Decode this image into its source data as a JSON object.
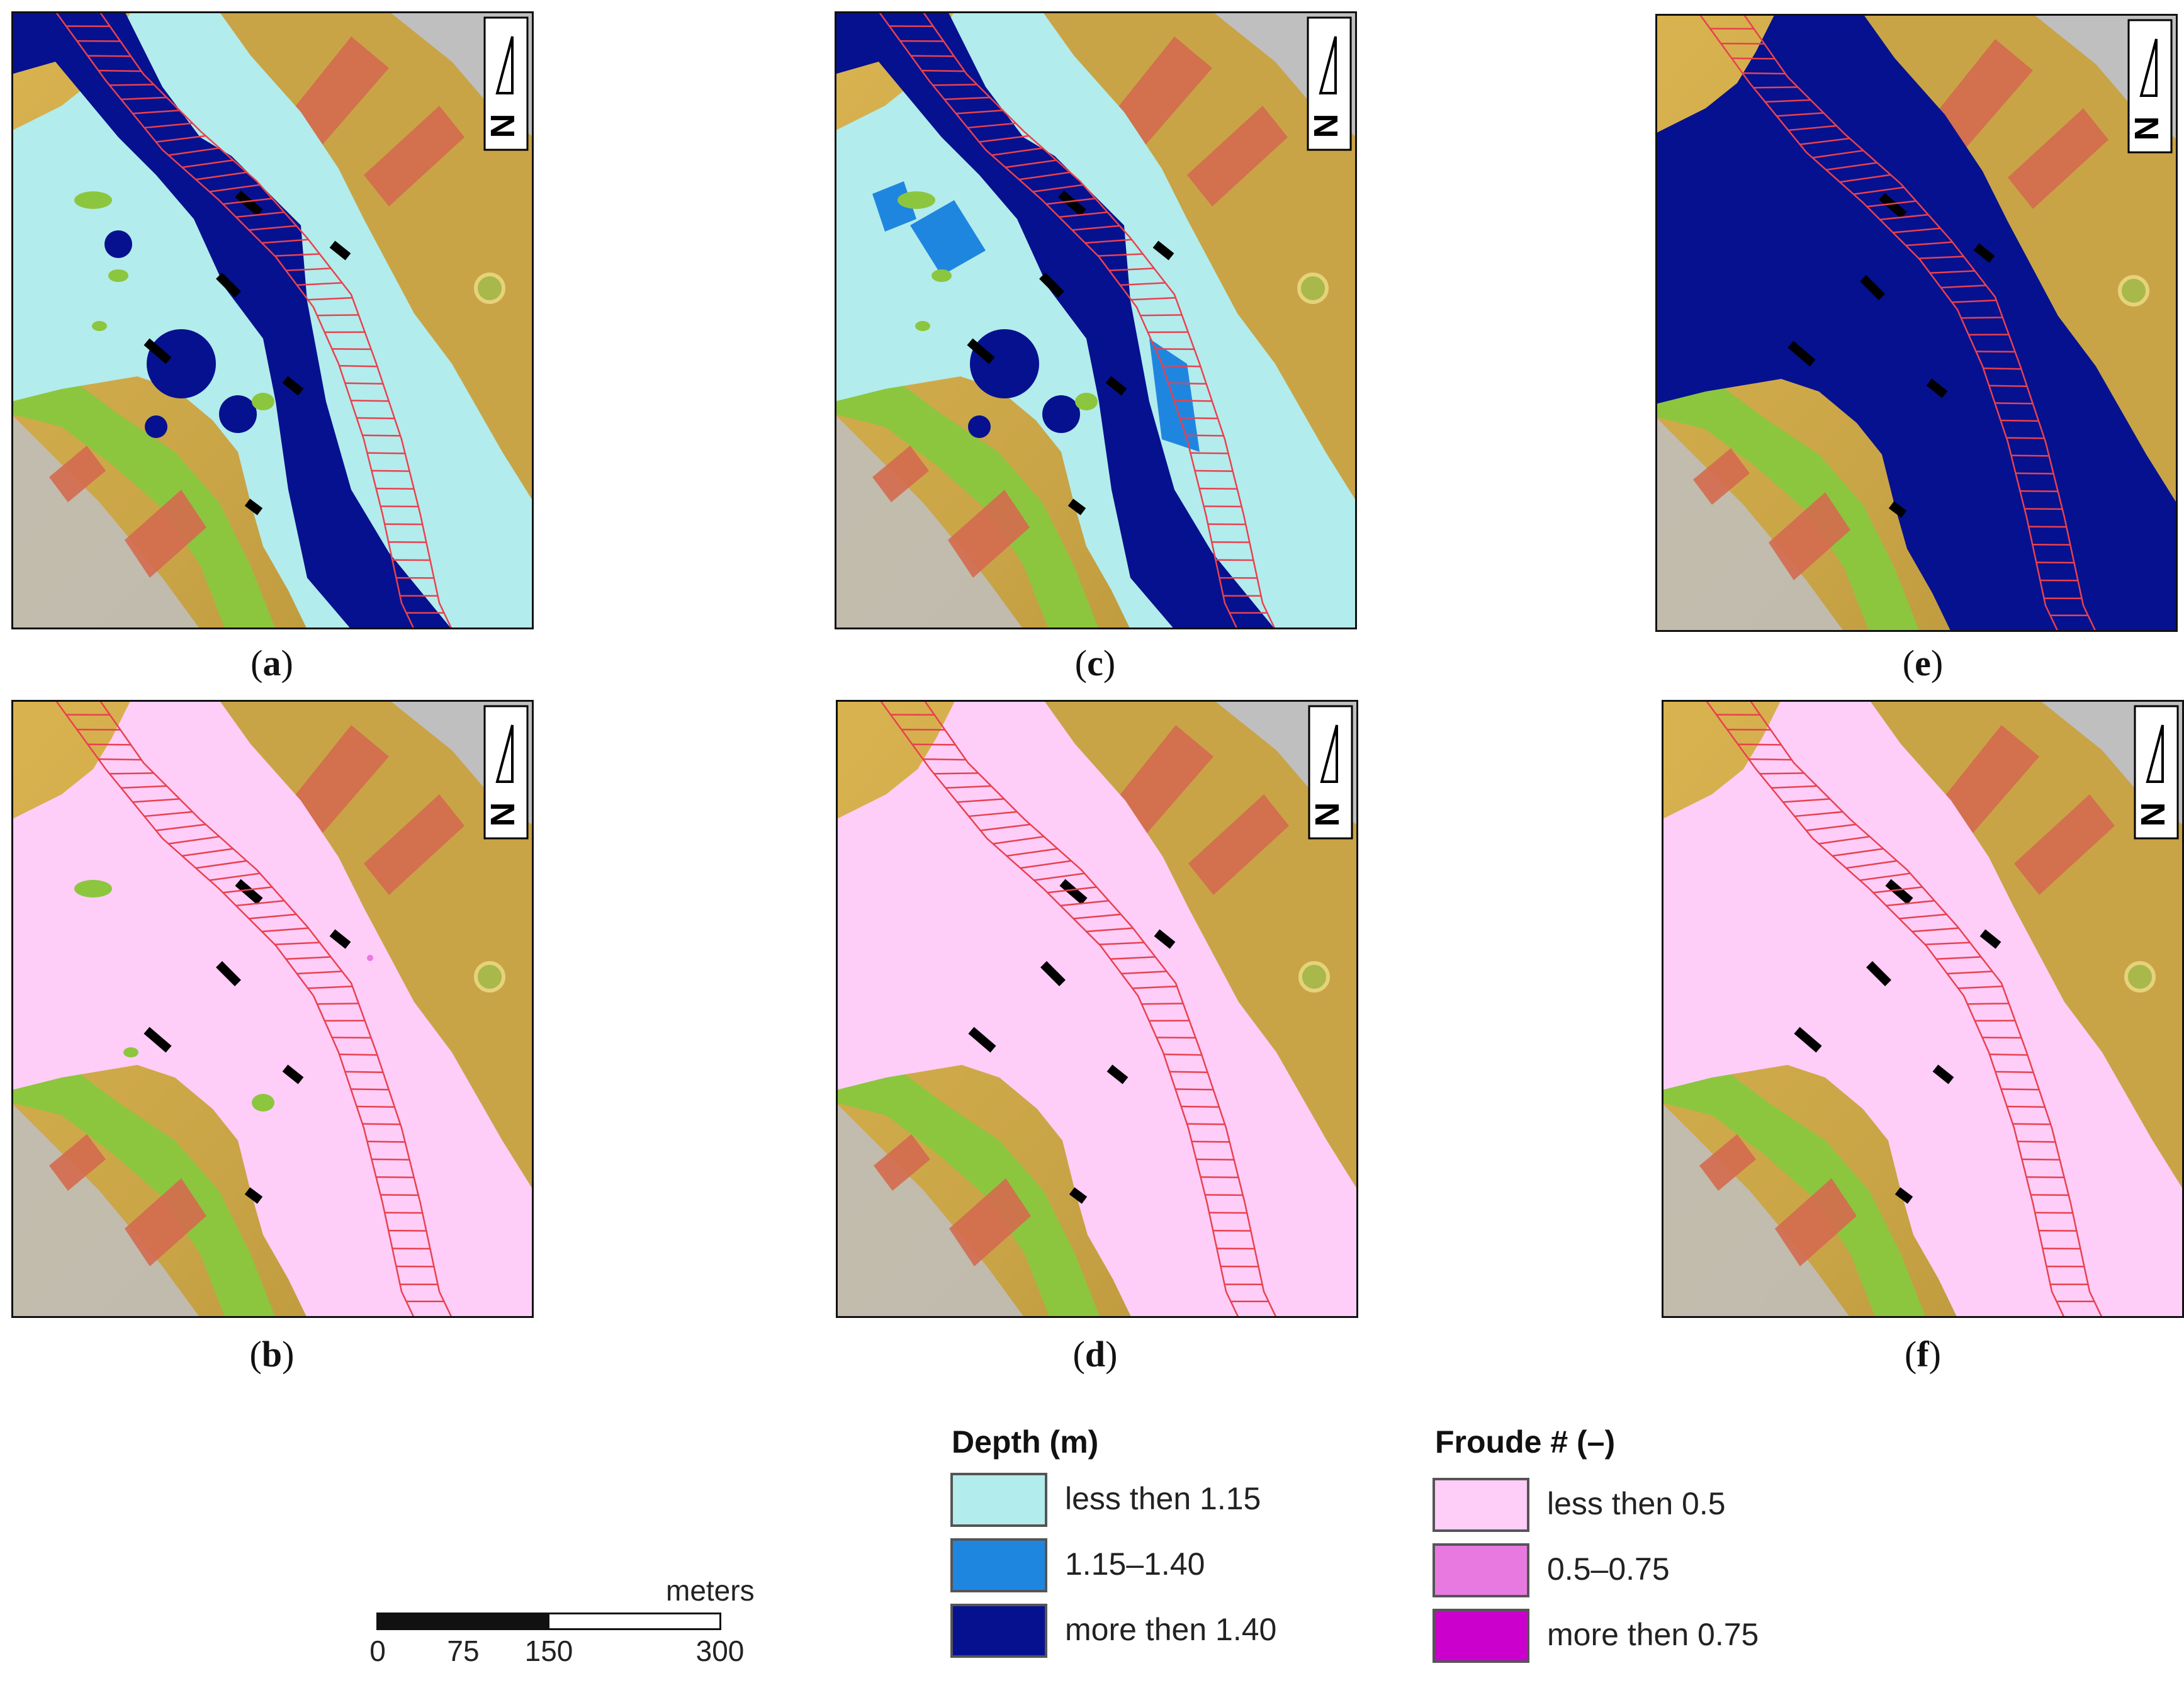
{
  "panels": [
    {
      "id": "a",
      "caption": "a",
      "mode": "depth-low"
    },
    {
      "id": "c",
      "caption": "c",
      "mode": "depth-mid"
    },
    {
      "id": "e",
      "caption": "e",
      "mode": "depth-high"
    },
    {
      "id": "b",
      "caption": "b",
      "mode": "froude-low"
    },
    {
      "id": "d",
      "caption": "d",
      "mode": "froude-mid"
    },
    {
      "id": "f",
      "caption": "f",
      "mode": "froude-high"
    }
  ],
  "north_arrow": {
    "label": "N"
  },
  "legend_depth": {
    "title": "Depth (m)",
    "items": [
      {
        "label": "less then 1.15",
        "color": "#b3ecec"
      },
      {
        "label": "1.15–1.40",
        "color": "#1f86e0"
      },
      {
        "label": "more then 1.40",
        "color": "#06118f"
      }
    ]
  },
  "legend_froude": {
    "title": "Froude # (–)",
    "items": [
      {
        "label": "less then 0.5",
        "color": "#fecdf8"
      },
      {
        "label": "0.5–0.75",
        "color": "#e879e0"
      },
      {
        "label": "more then 0.75",
        "color": "#cc00cc"
      }
    ]
  },
  "scale_bar": {
    "unit": "meters",
    "ticks": [
      "0",
      "75",
      "150",
      "300"
    ]
  },
  "colors": {
    "terrain_high": "#c9a446",
    "terrain_low": "#8cc63e",
    "road": "#bfbfbf",
    "building": "#d46a4f",
    "bridge_outline": "#e8414e"
  }
}
